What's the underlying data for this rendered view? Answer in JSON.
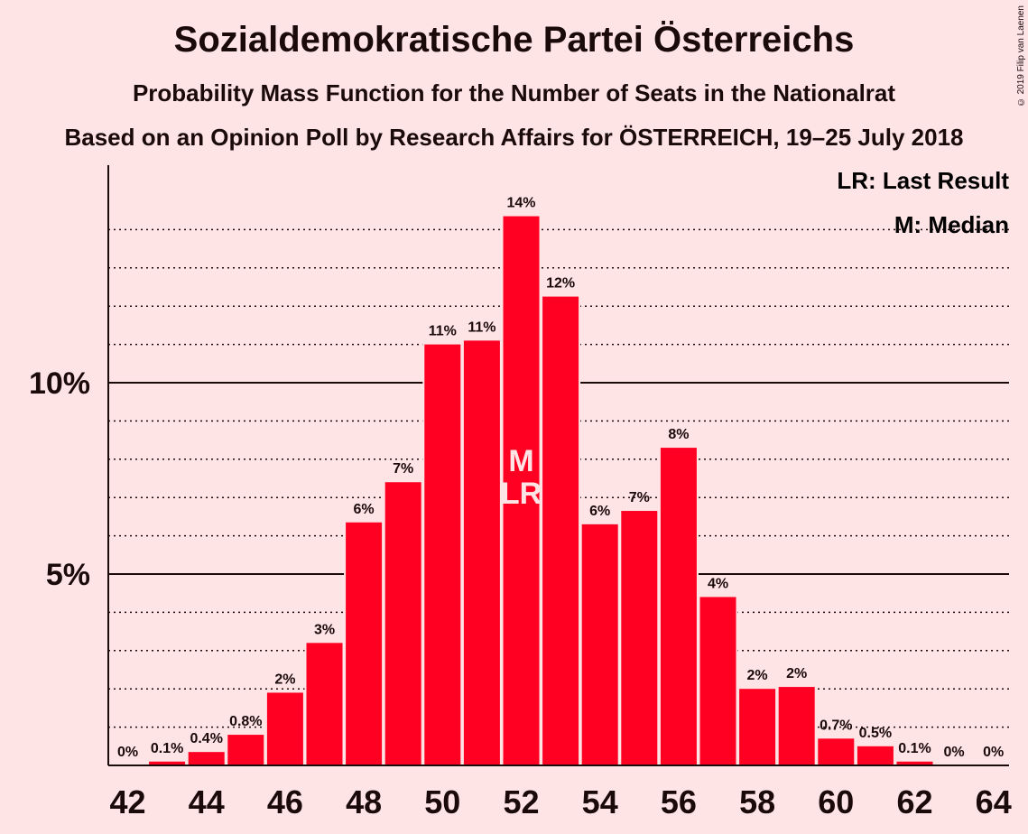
{
  "chart_data": {
    "type": "bar",
    "title": "Sozialdemokratische Partei Österreichs",
    "subtitle": "Probability Mass Function for the Number of Seats in the Nationalrat",
    "subtitle2": "Based on an Opinion Poll by Research Affairs for ÖSTERREICH, 19–25 July 2018",
    "copyright": "© 2019 Filip van Laenen",
    "legend": {
      "last_result": "LR: Last Result",
      "median": "M: Median"
    },
    "x": [
      42,
      43,
      44,
      45,
      46,
      47,
      48,
      49,
      50,
      51,
      52,
      53,
      54,
      55,
      56,
      57,
      58,
      59,
      60,
      61,
      62,
      63,
      64
    ],
    "values": [
      0,
      0.1,
      0.35,
      0.8,
      1.9,
      3.2,
      6.35,
      7.4,
      11.0,
      11.1,
      14.35,
      12.25,
      6.3,
      6.65,
      8.3,
      4.4,
      2.0,
      2.05,
      0.7,
      0.5,
      0.1,
      0,
      0
    ],
    "labels": [
      "0%",
      "0.1%",
      "0.4%",
      "0.8%",
      "2%",
      "3%",
      "6%",
      "7%",
      "11%",
      "11%",
      "14%",
      "12%",
      "6%",
      "7%",
      "8%",
      "4%",
      "2%",
      "2%",
      "0.7%",
      "0.5%",
      "0.1%",
      "0%",
      "0%"
    ],
    "x_tick_labels": [
      "42",
      "44",
      "46",
      "48",
      "50",
      "52",
      "54",
      "56",
      "58",
      "60",
      "62",
      "64"
    ],
    "y_ticks": [
      {
        "value": 5,
        "label": "5%"
      },
      {
        "value": 10,
        "label": "10%"
      }
    ],
    "ylim": [
      0,
      15.7
    ],
    "median_seat": 52,
    "last_result_seat": 52,
    "median_marker": "M",
    "last_result_marker": "LR",
    "colors": {
      "bar": "#ff0022",
      "background": "#ffe4e6",
      "text": "#1a0a0a"
    },
    "grid": true
  }
}
